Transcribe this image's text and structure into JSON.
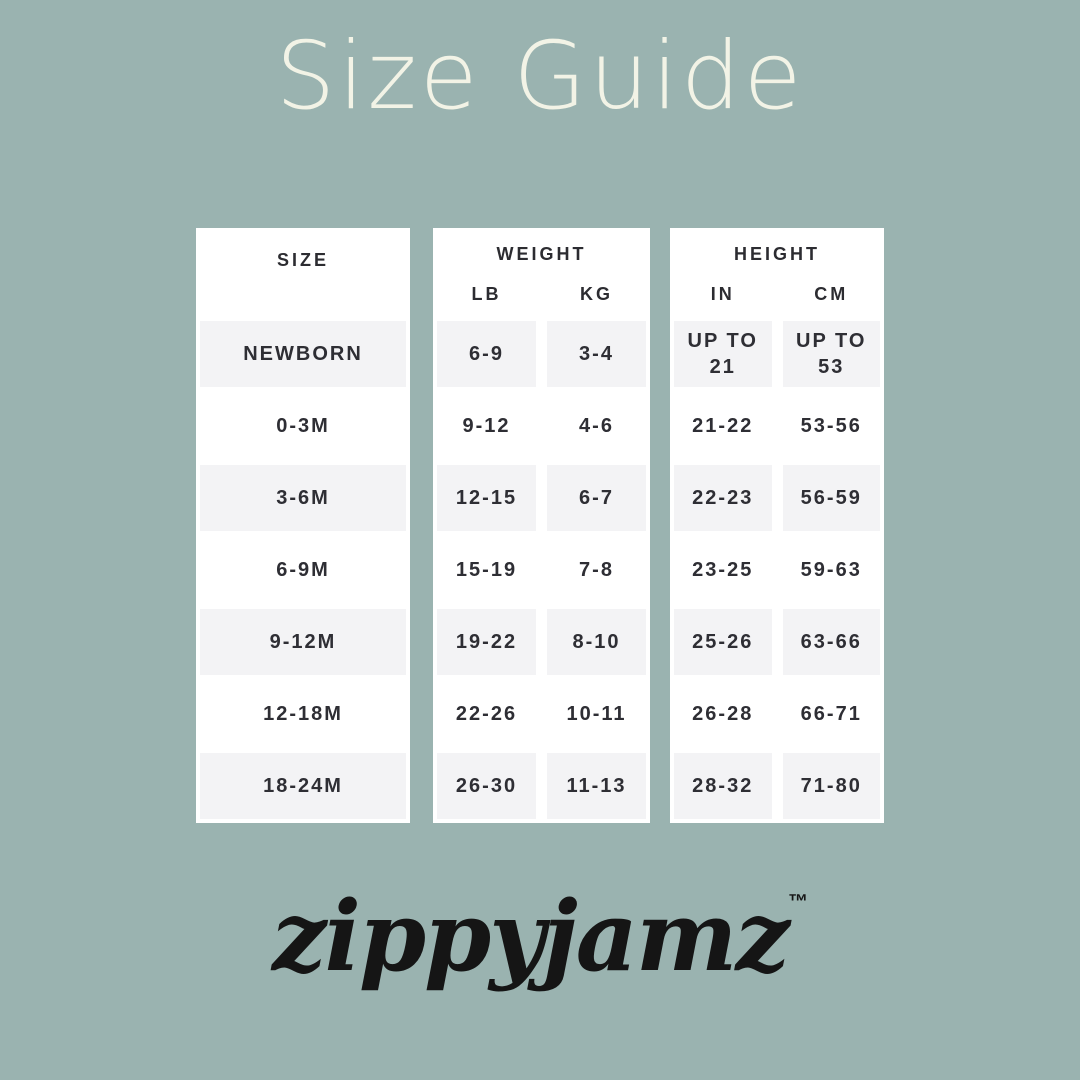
{
  "page": {
    "title": "Size Guide"
  },
  "colors": {
    "background": "#9ab3b0",
    "title_cream": "#f2f3e6",
    "card_white": "#ffffff",
    "stripe_gray": "#f3f3f5",
    "text_dark": "#2e2e34",
    "logo_black": "#151515"
  },
  "tables": {
    "size": {
      "header": "SIZE",
      "rows": [
        "NEWBORN",
        "0-3M",
        "3-6M",
        "6-9M",
        "9-12M",
        "12-18M",
        "18-24M"
      ]
    },
    "weight": {
      "header": "WEIGHT",
      "columns": [
        "LB",
        "KG"
      ],
      "rows": [
        [
          "6-9",
          "3-4"
        ],
        [
          "9-12",
          "4-6"
        ],
        [
          "12-15",
          "6-7"
        ],
        [
          "15-19",
          "7-8"
        ],
        [
          "19-22",
          "8-10"
        ],
        [
          "22-26",
          "10-11"
        ],
        [
          "26-30",
          "11-13"
        ]
      ]
    },
    "height": {
      "header": "HEIGHT",
      "columns": [
        "IN",
        "CM"
      ],
      "rows": [
        [
          "UP TO 21",
          "UP TO 53"
        ],
        [
          "21-22",
          "53-56"
        ],
        [
          "22-23",
          "56-59"
        ],
        [
          "23-25",
          "59-63"
        ],
        [
          "25-26",
          "63-66"
        ],
        [
          "26-28",
          "66-71"
        ],
        [
          "28-32",
          "71-80"
        ]
      ]
    }
  },
  "brand": {
    "logo_text": "zippyjamz",
    "trademark": "™"
  }
}
